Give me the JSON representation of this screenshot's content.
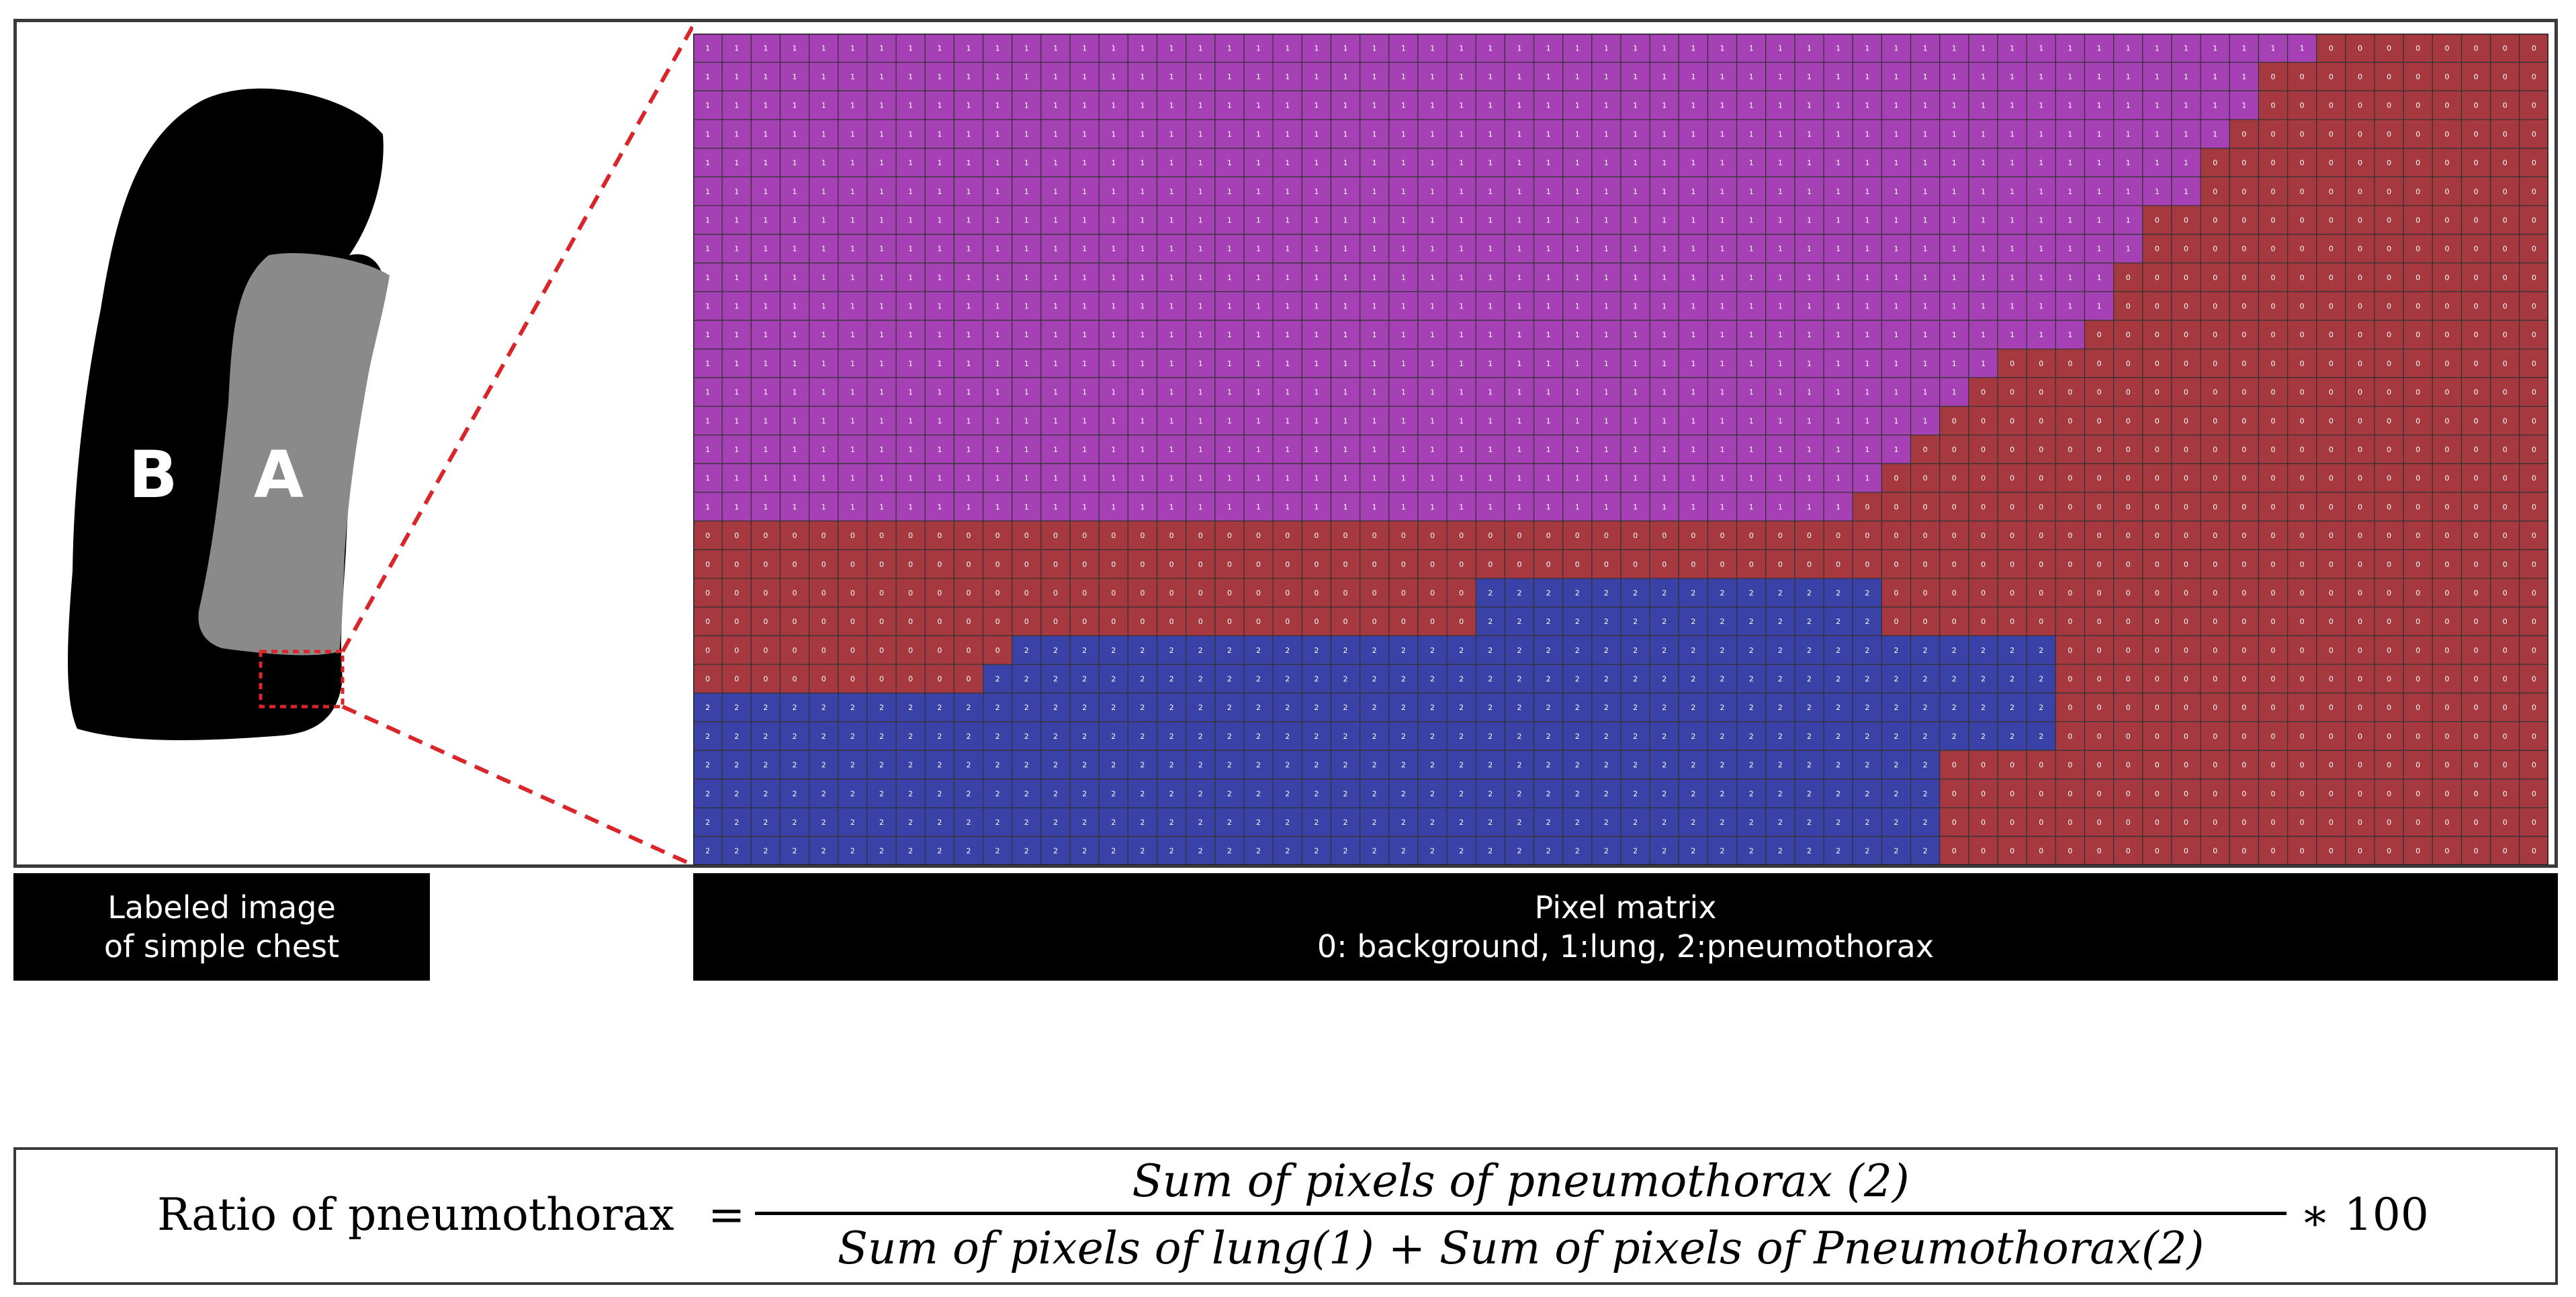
{
  "chest_image": {
    "label_a": "A",
    "label_b": "B",
    "colors": {
      "region_b": "#000000",
      "region_a": "#8a8a8a",
      "zoom_marker": "#d9262b"
    }
  },
  "pixel_matrix": {
    "columns": 64,
    "rows": 29,
    "colors": {
      "0": "#a6393f",
      "1": "#a540b5",
      "2": "#3a41a7",
      "grid": "#333333",
      "cell_text": "#ffffff"
    },
    "row_runs": [
      [
        [
          1,
          56
        ],
        [
          0,
          8
        ]
      ],
      [
        [
          1,
          54
        ],
        [
          0,
          10
        ]
      ],
      [
        [
          1,
          54
        ],
        [
          0,
          10
        ]
      ],
      [
        [
          1,
          53
        ],
        [
          0,
          11
        ]
      ],
      [
        [
          1,
          52
        ],
        [
          0,
          12
        ]
      ],
      [
        [
          1,
          52
        ],
        [
          0,
          12
        ]
      ],
      [
        [
          1,
          50
        ],
        [
          0,
          14
        ]
      ],
      [
        [
          1,
          50
        ],
        [
          0,
          14
        ]
      ],
      [
        [
          1,
          49
        ],
        [
          0,
          15
        ]
      ],
      [
        [
          1,
          49
        ],
        [
          0,
          15
        ]
      ],
      [
        [
          1,
          48
        ],
        [
          0,
          16
        ]
      ],
      [
        [
          1,
          45
        ],
        [
          0,
          19
        ]
      ],
      [
        [
          1,
          44
        ],
        [
          0,
          20
        ]
      ],
      [
        [
          1,
          43
        ],
        [
          0,
          21
        ]
      ],
      [
        [
          1,
          42
        ],
        [
          0,
          22
        ]
      ],
      [
        [
          1,
          41
        ],
        [
          0,
          23
        ]
      ],
      [
        [
          1,
          40
        ],
        [
          0,
          24
        ]
      ],
      [
        [
          0,
          64
        ]
      ],
      [
        [
          0,
          64
        ]
      ],
      [
        [
          0,
          27
        ],
        [
          2,
          14
        ],
        [
          0,
          23
        ]
      ],
      [
        [
          0,
          27
        ],
        [
          2,
          14
        ],
        [
          0,
          23
        ]
      ],
      [
        [
          0,
          11
        ],
        [
          2,
          36
        ],
        [
          0,
          17
        ]
      ],
      [
        [
          0,
          10
        ],
        [
          2,
          37
        ],
        [
          0,
          17
        ]
      ],
      [
        [
          2,
          47
        ],
        [
          0,
          17
        ]
      ],
      [
        [
          2,
          47
        ],
        [
          0,
          17
        ]
      ],
      [
        [
          2,
          43
        ],
        [
          0,
          21
        ]
      ],
      [
        [
          2,
          43
        ],
        [
          0,
          21
        ]
      ],
      [
        [
          2,
          43
        ],
        [
          0,
          21
        ]
      ],
      [
        [
          2,
          43
        ],
        [
          0,
          21
        ]
      ]
    ]
  },
  "captions": {
    "left_line1": "Labeled image",
    "left_line2": "of simple chest",
    "right_line1": "Pixel matrix",
    "right_line2": "0: background, 1:lung, 2:pneumothorax"
  },
  "formula": {
    "lhs": "Ratio of pneumothorax",
    "equals": "=",
    "numerator": "Sum of pixels of pneumothorax (2)",
    "denominator": "Sum of pixels of lung(1) + Sum of pixels of Pneumothorax(2)",
    "multiplier": "∗ 100"
  }
}
